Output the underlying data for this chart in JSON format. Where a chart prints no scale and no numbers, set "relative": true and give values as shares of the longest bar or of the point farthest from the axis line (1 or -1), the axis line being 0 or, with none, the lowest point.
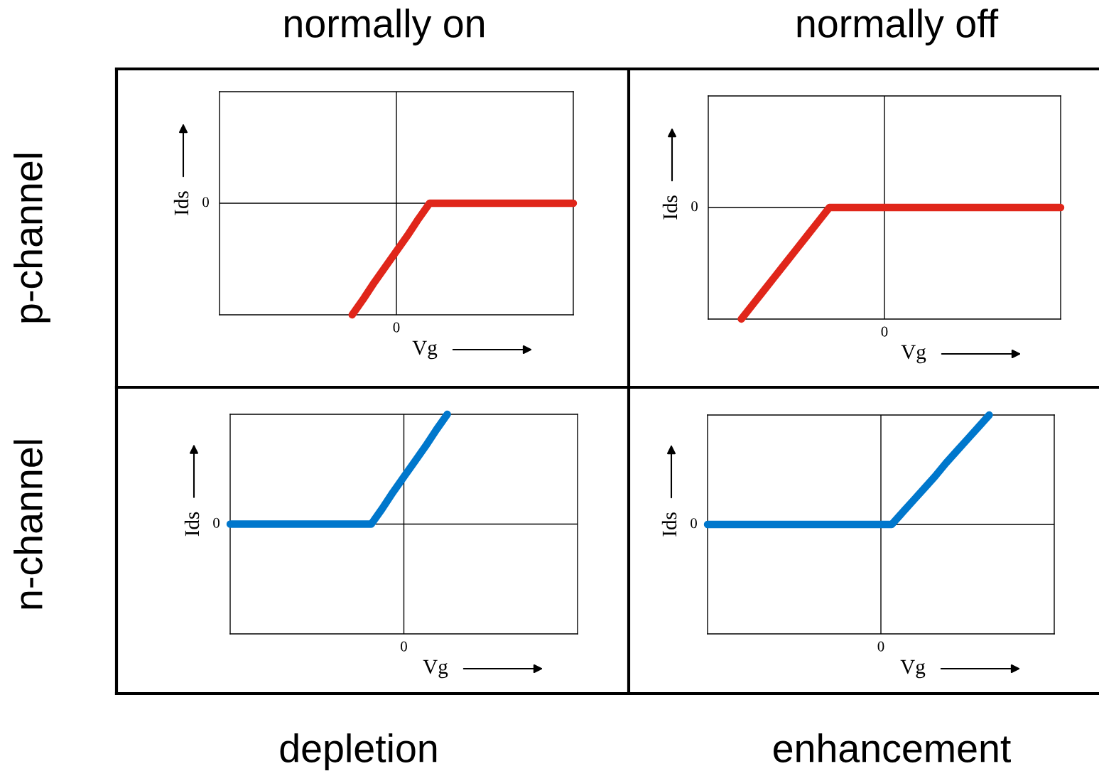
{
  "chart_data": [
    {
      "type": "line",
      "title": "normally on",
      "xlabel": "Vg",
      "ylabel": "Ids",
      "relative": true,
      "annotations": [
        "0",
        "0",
        "p-channel"
      ],
      "categories": [
        null,
        null,
        null,
        null,
        null,
        null,
        null,
        null,
        null,
        null,
        null,
        null,
        null,
        null,
        null,
        null,
        null,
        null,
        null,
        null,
        null,
        null,
        null,
        null,
        null,
        null,
        null,
        null,
        null,
        null,
        null,
        null,
        null
      ],
      "series": [
        {
          "color": "#e0261a",
          "values": [
            null,
            null,
            null,
            null,
            null,
            null,
            null,
            null,
            null,
            null,
            null,
            null,
            -1,
            -0.86,
            -0.71,
            -0.57,
            -0.43,
            -0.29,
            -0.14,
            0,
            0,
            0,
            0,
            0,
            0,
            0,
            0,
            0,
            0,
            0,
            0,
            0,
            0
          ]
        }
      ]
    },
    {
      "type": "line",
      "title": "normally off",
      "xlabel": "Vg",
      "ylabel": "Ids",
      "relative": true,
      "annotations": [
        "0",
        "0"
      ],
      "categories": [
        null,
        null,
        null,
        null,
        null,
        null,
        null,
        null,
        null,
        null,
        null,
        null,
        null,
        null,
        null,
        null,
        null,
        null,
        null,
        null,
        null,
        null,
        null,
        null,
        null,
        null,
        null,
        null,
        null,
        null,
        null,
        null,
        null
      ],
      "series": [
        {
          "color": "#e0261a",
          "values": [
            null,
            null,
            null,
            -1,
            -0.875,
            -0.75,
            -0.625,
            -0.5,
            -0.375,
            -0.25,
            -0.125,
            0,
            0,
            0,
            0,
            0,
            0,
            0,
            0,
            0,
            0,
            0,
            0,
            0,
            0,
            0,
            0,
            0,
            0,
            0,
            0,
            0,
            0
          ]
        }
      ]
    },
    {
      "type": "line",
      "xlabel": "Vg",
      "ylabel": "Ids",
      "relative": true,
      "annotations": [
        "0",
        "0",
        "n-channel",
        "depletion"
      ],
      "categories": [
        null,
        null,
        null,
        null,
        null,
        null,
        null,
        null,
        null,
        null,
        null,
        null,
        null,
        null,
        null,
        null,
        null,
        null,
        null,
        null,
        null,
        null,
        null,
        null,
        null,
        null,
        null,
        null,
        null,
        null,
        null,
        null,
        null
      ],
      "series": [
        {
          "color": "#0077cc",
          "values": [
            0,
            0,
            0,
            0,
            0,
            0,
            0,
            0,
            0,
            0,
            0,
            0,
            0,
            0,
            0.14,
            0.29,
            0.43,
            0.57,
            0.71,
            0.86,
            1,
            null,
            null,
            null,
            null,
            null,
            null,
            null,
            null,
            null,
            null,
            null,
            null
          ]
        }
      ]
    },
    {
      "type": "line",
      "xlabel": "Vg",
      "ylabel": "Ids",
      "relative": true,
      "annotations": [
        "0",
        "0",
        "enhancement"
      ],
      "categories": [
        null,
        null,
        null,
        null,
        null,
        null,
        null,
        null,
        null,
        null,
        null,
        null,
        null,
        null,
        null,
        null,
        null,
        null,
        null,
        null,
        null,
        null,
        null,
        null,
        null,
        null,
        null,
        null,
        null,
        null,
        null,
        null,
        null
      ],
      "series": [
        {
          "color": "#0077cc",
          "values": [
            0,
            0,
            0,
            0,
            0,
            0,
            0,
            0,
            0,
            0,
            0,
            0,
            0,
            0,
            0,
            0,
            0,
            0,
            0.11,
            0.22,
            0.33,
            0.44,
            0.56,
            0.67,
            0.78,
            0.89,
            1,
            null,
            null,
            null,
            null,
            null,
            null
          ]
        }
      ]
    }
  ]
}
